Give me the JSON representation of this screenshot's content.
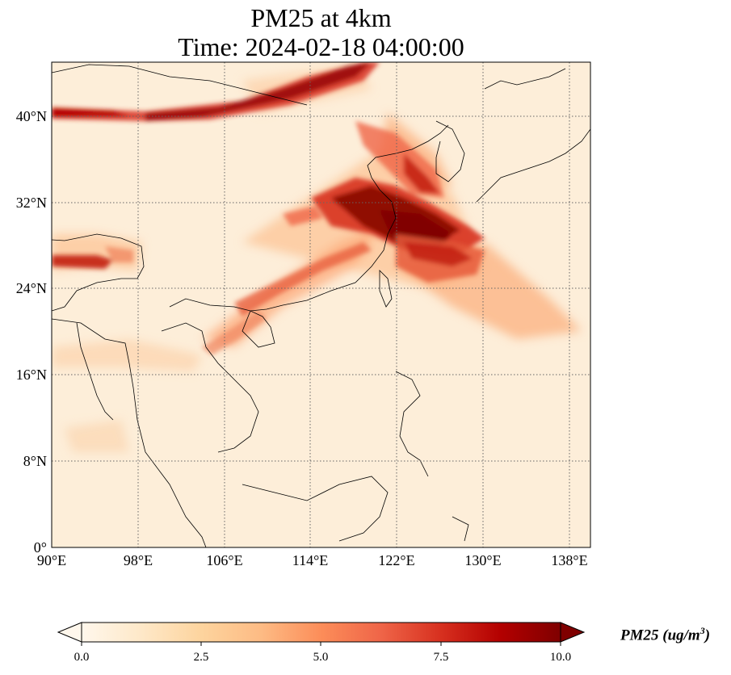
{
  "title": {
    "line1": "PM25 at 4km",
    "line2": "Time: 2024-02-18 04:00:00"
  },
  "map": {
    "projection": "PlateCarree",
    "lon_range": [
      90,
      140
    ],
    "lat_range": [
      0,
      45
    ],
    "lon_ticks": [
      {
        "value": 90,
        "label": "90°E"
      },
      {
        "value": 98,
        "label": "98°E"
      },
      {
        "value": 106,
        "label": "106°E"
      },
      {
        "value": 114,
        "label": "114°E"
      },
      {
        "value": 122,
        "label": "122°E"
      },
      {
        "value": 130,
        "label": "130°E"
      },
      {
        "value": 138,
        "label": "138°E"
      }
    ],
    "lat_ticks": [
      {
        "value": 0,
        "label": "0°"
      },
      {
        "value": 8,
        "label": "8°N"
      },
      {
        "value": 16,
        "label": "16°N"
      },
      {
        "value": 24,
        "label": "24°N"
      },
      {
        "value": 32,
        "label": "32°N"
      },
      {
        "value": 40,
        "label": "40°N"
      }
    ],
    "gridlines": "dotted",
    "field": "PM25",
    "high_concentration_plumes": [
      {
        "region": "northern band",
        "lon": [
          90,
          120
        ],
        "lat": [
          39.5,
          45
        ],
        "level": 9
      },
      {
        "region": "east china / yellow sea",
        "lon": [
          115,
          130
        ],
        "lat": [
          27,
          33
        ],
        "level": 10
      },
      {
        "region": "korea plume",
        "lon": [
          117,
          128
        ],
        "lat": [
          32,
          38
        ],
        "level": 7
      },
      {
        "region": "east of taiwan",
        "lon": [
          121,
          136
        ],
        "lat": [
          20,
          28
        ],
        "level": 5
      },
      {
        "region": "himalaya band",
        "lon": [
          90,
          98
        ],
        "lat": [
          26,
          28
        ],
        "level": 9
      },
      {
        "region": "south china coast",
        "lon": [
          106,
          118
        ],
        "lat": [
          18,
          26
        ],
        "level": 5
      }
    ]
  },
  "colorbar": {
    "cmap": "OrRd",
    "colors": [
      "#fff7ec",
      "#fee8c8",
      "#fdd49e",
      "#fdbb84",
      "#fc8d59",
      "#ef6548",
      "#d7301f",
      "#b30000",
      "#7f0000"
    ],
    "min": 0.0,
    "max": 10.0,
    "ticks": [
      "0.0",
      "2.5",
      "5.0",
      "7.5",
      "10.0"
    ],
    "extend": "both",
    "label": "PM25 (ug/m",
    "label_sup": "3",
    "label_close": ")"
  }
}
